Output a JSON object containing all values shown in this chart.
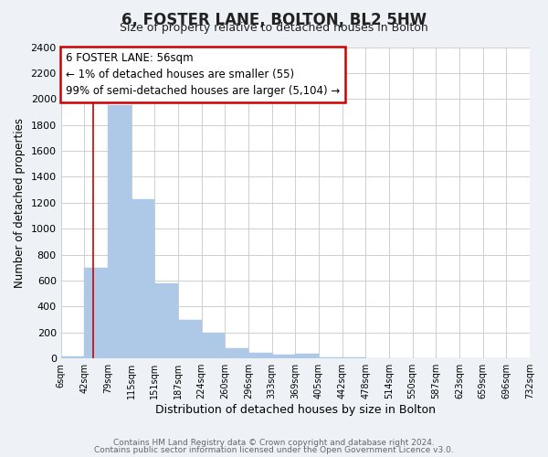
{
  "title": "6, FOSTER LANE, BOLTON, BL2 5HW",
  "subtitle": "Size of property relative to detached houses in Bolton",
  "xlabel": "Distribution of detached houses by size in Bolton",
  "ylabel": "Number of detached properties",
  "bin_labels": [
    "6sqm",
    "42sqm",
    "79sqm",
    "115sqm",
    "151sqm",
    "187sqm",
    "224sqm",
    "260sqm",
    "296sqm",
    "333sqm",
    "369sqm",
    "405sqm",
    "442sqm",
    "478sqm",
    "514sqm",
    "550sqm",
    "587sqm",
    "623sqm",
    "659sqm",
    "696sqm",
    "732sqm"
  ],
  "bar_values": [
    15,
    700,
    1950,
    1230,
    580,
    300,
    200,
    80,
    45,
    30,
    35,
    10,
    5,
    0,
    0,
    0,
    0,
    0,
    0,
    0
  ],
  "bar_color": "#aec8e8",
  "bar_edge_color": "#aec8e8",
  "ylim": [
    0,
    2400
  ],
  "yticks": [
    0,
    200,
    400,
    600,
    800,
    1000,
    1200,
    1400,
    1600,
    1800,
    2000,
    2200,
    2400
  ],
  "property_line_bin_index": 1.38,
  "annotation_title": "6 FOSTER LANE: 56sqm",
  "annotation_line1": "← 1% of detached houses are smaller (55)",
  "annotation_line2": "99% of semi-detached houses are larger (5,104) →",
  "annotation_box_color": "#ffffff",
  "annotation_box_edge_color": "#cc0000",
  "property_line_color": "#cc0000",
  "footer1": "Contains HM Land Registry data © Crown copyright and database right 2024.",
  "footer2": "Contains public sector information licensed under the Open Government Licence v3.0.",
  "background_color": "#eef2f6",
  "plot_bg_color": "#ffffff",
  "grid_color": "#c8c8c8"
}
